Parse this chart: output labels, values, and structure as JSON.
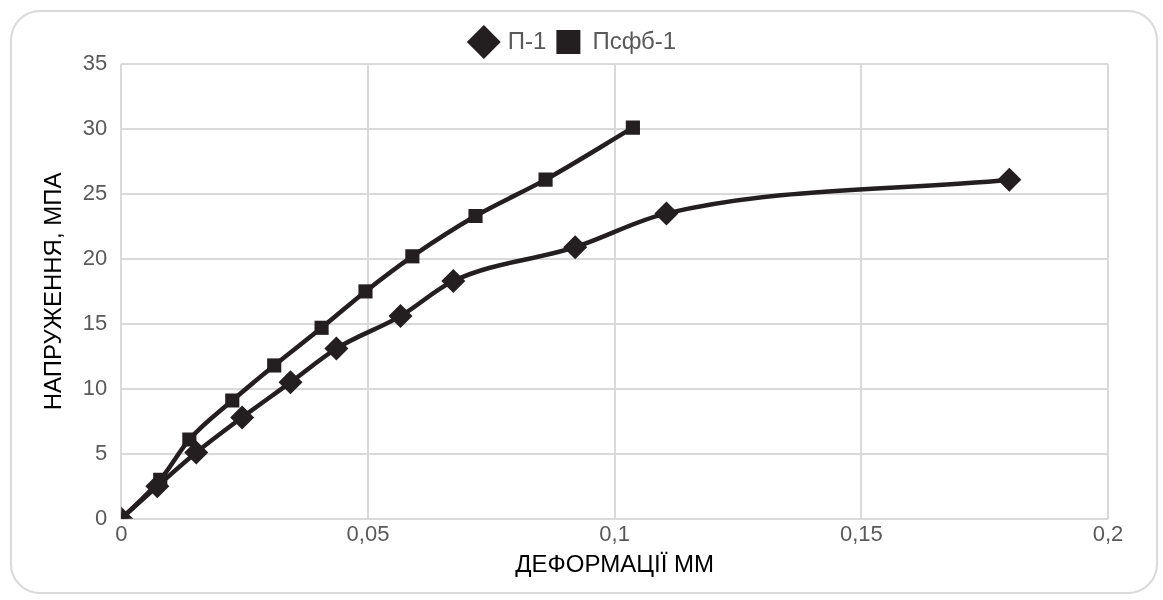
{
  "chart_data": {
    "type": "line",
    "xlabel": "ДЕФОРМАЦІЇ ММ",
    "ylabel": "НАПРУЖЕННЯ, МПА",
    "series": [
      {
        "name": "П-1",
        "color": "#231f20",
        "marker": "diamond",
        "x": [
          0,
          0.0073,
          0.0152,
          0.0245,
          0.0343,
          0.0436,
          0.0566,
          0.0673,
          0.092,
          0.1105,
          0.18
        ],
        "values": [
          0,
          2.5,
          5.1,
          7.8,
          10.5,
          13.1,
          15.6,
          18.3,
          20.9,
          23.5,
          26.1
        ]
      },
      {
        "name": "Псфб-1",
        "color": "#231f20",
        "marker": "square",
        "x": [
          0,
          0.0079,
          0.0138,
          0.0225,
          0.031,
          0.0406,
          0.0495,
          0.059,
          0.0718,
          0.086,
          0.1037
        ],
        "values": [
          0,
          3.0,
          6.1,
          9.1,
          11.8,
          14.7,
          17.5,
          20.2,
          23.3,
          26.1,
          30.1
        ]
      }
    ],
    "xlim": [
      0,
      0.2
    ],
    "xticks": [
      {
        "value": 0,
        "label": "0"
      },
      {
        "value": 0.05,
        "label": "0,05"
      },
      {
        "value": 0.1,
        "label": "0,1"
      },
      {
        "value": 0.15,
        "label": "0,15"
      },
      {
        "value": 0.2,
        "label": "0,2"
      }
    ],
    "ylim": [
      0,
      35
    ],
    "yticks": [
      0,
      5,
      10,
      15,
      20,
      25,
      30,
      35
    ],
    "grid": true,
    "legend": "top"
  }
}
